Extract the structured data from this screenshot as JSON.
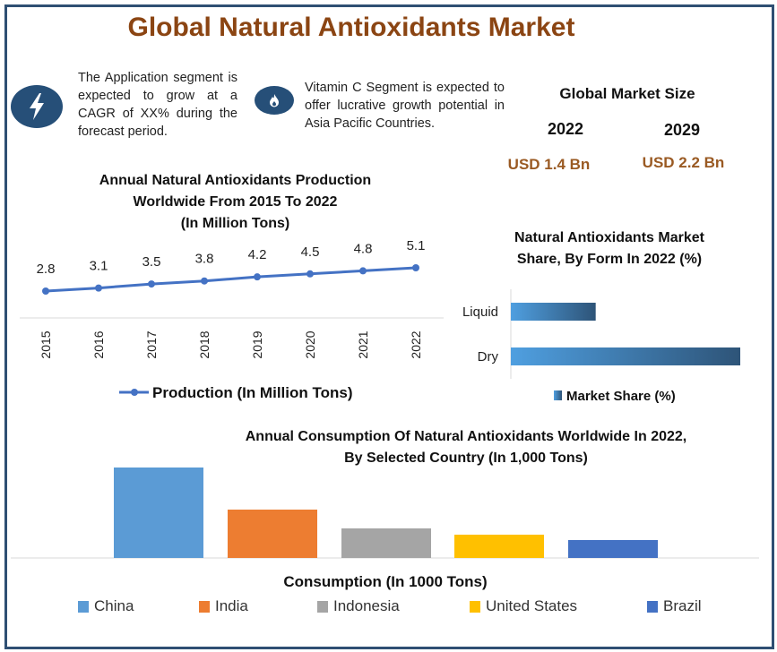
{
  "title": "Global Natural Antioxidants Market",
  "insights": [
    {
      "icon": "lightning-icon",
      "text": "The Application segment is expected to grow at a CAGR of XX% during the forecast period."
    },
    {
      "icon": "flame-icon",
      "text": "Vitamin C Segment is expected to offer lucrative growth potential in Asia Pacific Countries."
    }
  ],
  "market_size": {
    "heading": "Global Market Size",
    "years": [
      "2022",
      "2029"
    ],
    "values": [
      "USD 1.4 Bn",
      "USD 2.2 Bn"
    ]
  },
  "colors": {
    "title": "#8b4513",
    "accent_brown": "#9a5a23",
    "frame": "#2f4f73",
    "line": "#4472c4"
  },
  "chart_data": [
    {
      "type": "line",
      "title": "Annual Natural Antioxidants Production Worldwide From 2015 To 2022 (In Million Tons)",
      "title_lines": [
        "Annual Natural Antioxidants Production",
        "Worldwide From 2015 To 2022",
        "(In Million Tons)"
      ],
      "x": [
        "2015",
        "2016",
        "2017",
        "2018",
        "2019",
        "2020",
        "2021",
        "2022"
      ],
      "series": [
        {
          "name": "Production (In Million Tons)",
          "values": [
            2.8,
            3.1,
            3.5,
            3.8,
            4.2,
            4.5,
            4.8,
            5.1
          ],
          "color": "#4472c4"
        }
      ],
      "data_labels": [
        "2.8",
        "3.1",
        "3.5",
        "3.8",
        "4.2",
        "4.5",
        "4.8",
        "5.1"
      ],
      "xlabel": "",
      "ylabel": "",
      "grid": false,
      "legend": "bottom"
    },
    {
      "type": "bar",
      "orientation": "horizontal",
      "title": "Natural Antioxidants Market Share, By Form In 2022 (%)",
      "title_lines": [
        "Natural Antioxidants Market",
        "Share, By Form In 2022 (%)"
      ],
      "categories": [
        "Liquid",
        "Dry"
      ],
      "values": [
        27,
        73
      ],
      "series_name": "Market Share (%)",
      "xlim": [
        0,
        73
      ],
      "grid": false,
      "legend": "bottom"
    },
    {
      "type": "bar",
      "title": "Annual Consumption Of Natural Antioxidants Worldwide In 2022, By Selected Country (In 1,000 Tons)",
      "title_lines": [
        "Annual Consumption Of Natural Antioxidants Worldwide In 2022,",
        "By Selected Country (In 1,000 Tons)"
      ],
      "categories": [
        "China",
        "India",
        "Indonesia",
        "United States",
        "Brazil"
      ],
      "values": [
        101,
        54,
        33,
        26,
        20
      ],
      "colors": [
        "#5b9bd5",
        "#ed7d31",
        "#a5a5a5",
        "#ffc000",
        "#4472c4"
      ],
      "xlabel": "Consumption (In 1000 Tons)",
      "ylim": [
        0,
        101
      ],
      "grid": false,
      "legend": "bottom"
    }
  ]
}
